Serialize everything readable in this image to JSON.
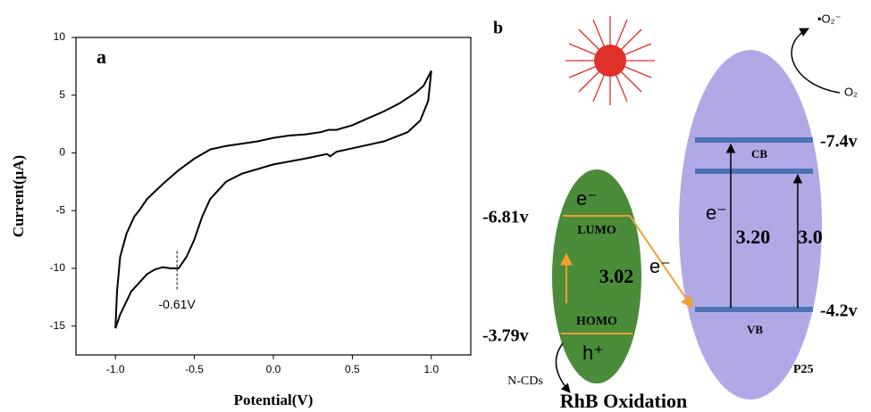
{
  "chart_data": {
    "type": "line",
    "label": "a",
    "x_label": "Potential(V)",
    "y_label": "Current(μA)",
    "color": "#000000",
    "x": [
      -1.0,
      -0.99,
      -0.97,
      -0.93,
      -0.88,
      -0.85,
      -0.8,
      -0.7,
      -0.6,
      -0.5,
      -0.4,
      -0.3,
      -0.2,
      -0.1,
      0.0,
      0.1,
      0.2,
      0.3,
      0.35,
      0.4,
      0.5,
      0.6,
      0.7,
      0.8,
      0.9,
      0.95,
      1.0,
      0.98,
      0.93,
      0.85,
      0.7,
      0.5,
      0.4,
      0.36,
      0.34,
      0.2,
      0.0,
      -0.2,
      -0.3,
      -0.4,
      -0.45,
      -0.5,
      -0.55,
      -0.6,
      -0.65,
      -0.7,
      -0.75,
      -0.8,
      -0.9,
      -0.97,
      -1.0
    ],
    "values": [
      -15.2,
      -12,
      -9,
      -7,
      -5.5,
      -5,
      -4,
      -2.7,
      -1.5,
      -0.5,
      0.3,
      0.6,
      0.8,
      1.0,
      1.3,
      1.5,
      1.6,
      1.8,
      2.0,
      2.0,
      2.4,
      3.0,
      3.6,
      4.3,
      5.2,
      5.8,
      7.1,
      4.5,
      2.8,
      1.8,
      1.0,
      0.4,
      0.1,
      -0.3,
      -0.1,
      -0.5,
      -1.0,
      -1.8,
      -2.5,
      -4,
      -5.5,
      -7.5,
      -9,
      -10.0,
      -10.0,
      -9.9,
      -10.1,
      -10.5,
      -12,
      -14,
      -15.2
    ],
    "xlim": [
      -1.25,
      1.25
    ],
    "xticks": [
      {
        "value": -1,
        "label": "-1.0"
      },
      -0.5,
      {
        "value": 0,
        "label": "0.0"
      },
      0.5,
      {
        "value": 1,
        "label": "1.0"
      }
    ],
    "ylim": [
      -17.5,
      10
    ],
    "yticks": [
      10,
      5,
      0,
      -5,
      -10,
      -15
    ],
    "annotation": {
      "text": "-0.61V",
      "x": -0.61
    }
  },
  "diagram": {
    "label": "b",
    "radical": "•O₂⁻",
    "oxygen": "O₂",
    "p25": {
      "name": "P25",
      "cb": "CB",
      "vb": "VB",
      "cb_potential": "-7.4v",
      "vb_potential": "-4.2v",
      "electron": "e⁻",
      "gap1": "3.20",
      "gap2": "3.0"
    },
    "ncds": {
      "name": "N-CDs",
      "lumo": "LUMO",
      "homo": "HOMO",
      "lumo_potential": "-6.81v",
      "homo_potential": "-3.79v",
      "electron": "e⁻",
      "hole": "h⁺",
      "gap": "3.02"
    },
    "transfer_electron": "e⁻",
    "product": "RhB Oxidation"
  }
}
